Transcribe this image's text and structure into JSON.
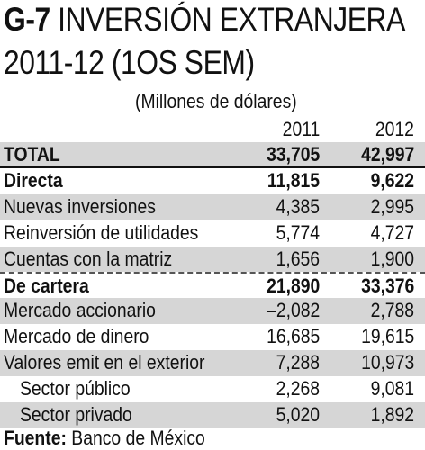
{
  "header": {
    "code": "G-7",
    "title": "INVERSIÓN EXTRANJERA",
    "subtitle": "2011-12 (1OS SEM)",
    "units": "(Millones de dólares)"
  },
  "chart_data": {
    "type": "table",
    "columns": [
      "2011",
      "2012"
    ],
    "rows": [
      {
        "label": "TOTAL",
        "values": [
          "33,705",
          "42,997"
        ],
        "bold": true,
        "shaded": true,
        "total": true
      },
      {
        "label": "Directa",
        "values": [
          "11,815",
          "9,622"
        ],
        "bold": true,
        "shaded": false
      },
      {
        "label": "Nuevas inversiones",
        "values": [
          "4,385",
          "2,995"
        ],
        "shaded": true
      },
      {
        "label": "Reinversión de utilidades",
        "values": [
          "5,774",
          "4,727"
        ],
        "shaded": false
      },
      {
        "label": "Cuentas con la matriz",
        "values": [
          "1,656",
          "1,900"
        ],
        "shaded": true
      },
      {
        "label": "De cartera",
        "values": [
          "21,890",
          "33,376"
        ],
        "bold": true,
        "shaded": false,
        "dash_above": true
      },
      {
        "label": "Mercado accionario",
        "values": [
          "–2,082",
          "2,788"
        ],
        "shaded": true
      },
      {
        "label": "Mercado de dinero",
        "values": [
          "16,685",
          "19,615"
        ],
        "shaded": false
      },
      {
        "label": "Valores emit en el exterior",
        "values": [
          "7,288",
          "10,973"
        ],
        "shaded": true
      },
      {
        "label": "Sector público",
        "values": [
          "2,268",
          "9,081"
        ],
        "shaded": false,
        "indent": true
      },
      {
        "label": "Sector privado",
        "values": [
          "5,020",
          "1,892"
        ],
        "shaded": true,
        "indent": true
      }
    ]
  },
  "source": {
    "label": "Fuente:",
    "text": "Banco de México"
  }
}
